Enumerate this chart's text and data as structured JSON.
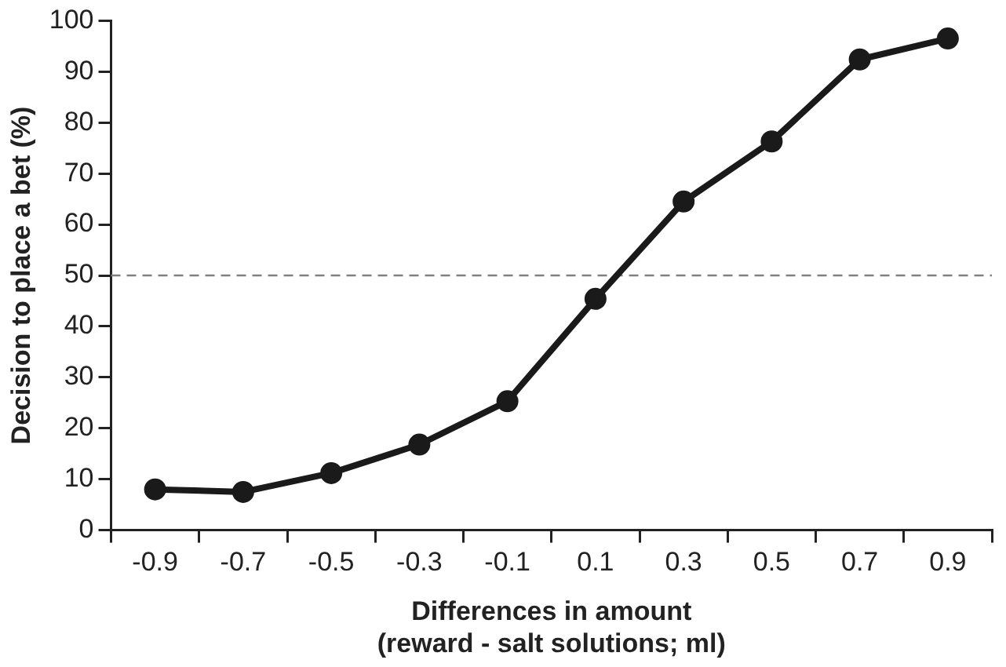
{
  "chart_data": {
    "type": "line",
    "xlabel": "Differences in amount\n(reward - salt solutions; ml)",
    "ylabel": "Decision to place a bet (%)",
    "categories": [
      "-0.9",
      "-0.7",
      "-0.5",
      "-0.3",
      "-0.1",
      "0.1",
      "0.3",
      "0.5",
      "0.7",
      "0.9"
    ],
    "series": [
      {
        "color": "#1a1a1a",
        "values": [
          8,
          7.5,
          11.2,
          16.8,
          25.3,
          45.4,
          64.5,
          76.3,
          92.4,
          96.5
        ]
      }
    ],
    "ylim": [
      0,
      100
    ],
    "yticks": [
      0,
      10,
      20,
      30,
      40,
      50,
      60,
      70,
      80,
      90,
      100
    ],
    "ref_lines": [
      {
        "axis": "y",
        "value": 50,
        "color": "#808080",
        "line_style": "dashed"
      }
    ],
    "grid": false,
    "legend": false,
    "marker": "circle",
    "line_style": "solid"
  }
}
